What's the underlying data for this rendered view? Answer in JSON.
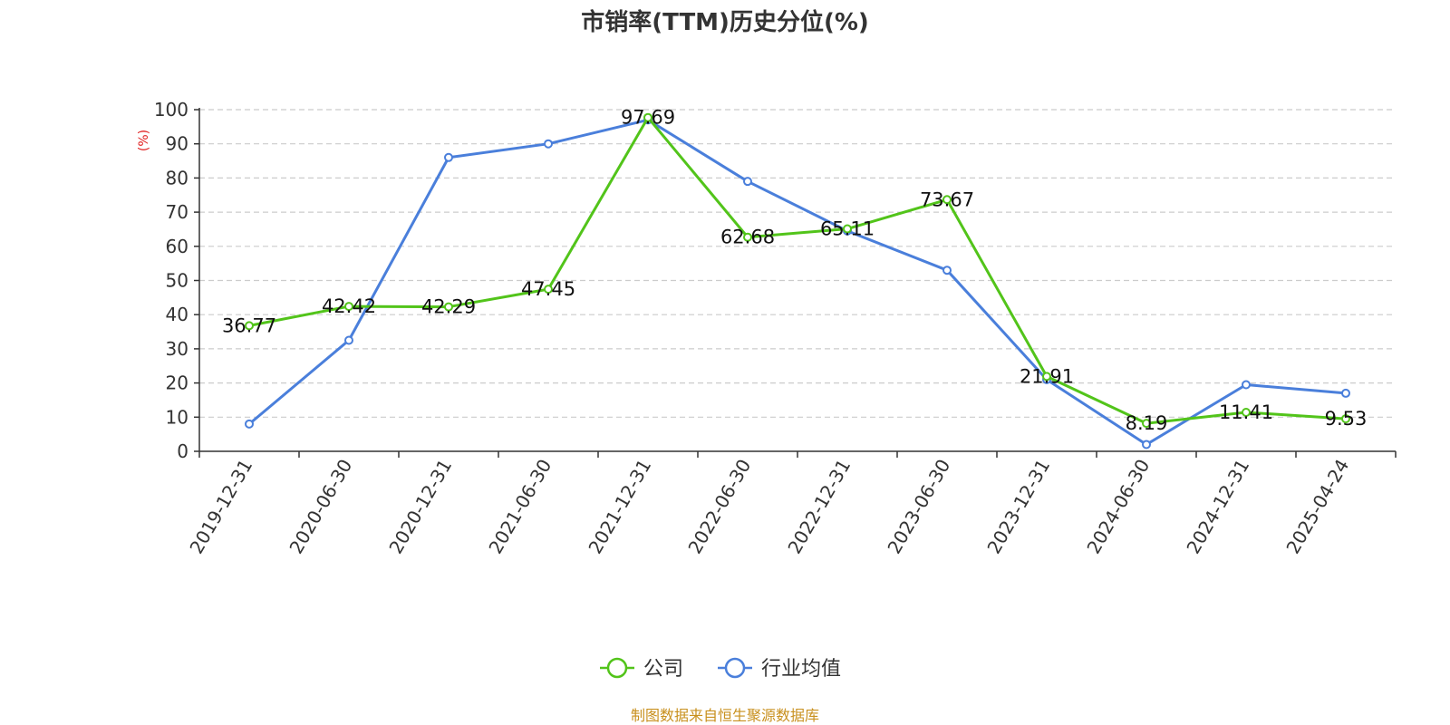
{
  "chart_data": {
    "type": "line",
    "title": "市销率(TTM)历史分位(%)",
    "ylabel": "(%)",
    "ylim": [
      0,
      100
    ],
    "yticks": [
      0,
      10,
      20,
      30,
      40,
      50,
      60,
      70,
      80,
      90,
      100
    ],
    "categories": [
      "2019-12-31",
      "2020-06-30",
      "2020-12-31",
      "2021-06-30",
      "2021-12-31",
      "2022-06-30",
      "2022-12-31",
      "2023-06-30",
      "2023-12-31",
      "2024-06-30",
      "2024-12-31",
      "2025-04-24"
    ],
    "series": [
      {
        "name": "公司",
        "color": "#52c41a",
        "values": [
          36.77,
          42.42,
          42.29,
          47.45,
          97.69,
          62.68,
          65.11,
          73.67,
          21.91,
          8.19,
          11.41,
          9.53
        ],
        "labels": [
          "36.77",
          "42.42",
          "42.29",
          "47.45",
          "97.69",
          "62.68",
          "65.11",
          "73.67",
          "21.91",
          "8.19",
          "11.41",
          "9.53"
        ]
      },
      {
        "name": "行业均值",
        "color": "#4a7fdb",
        "values": [
          8,
          32.5,
          86,
          90,
          97,
          79,
          64.5,
          53,
          21,
          2,
          19.5,
          17
        ]
      }
    ],
    "grid": true,
    "legend_position": "bottom-center"
  },
  "footer": {
    "source": "制图数据来自恒生聚源数据库",
    "source_color": "#c8901e"
  },
  "ylabel_color": "#e02020"
}
